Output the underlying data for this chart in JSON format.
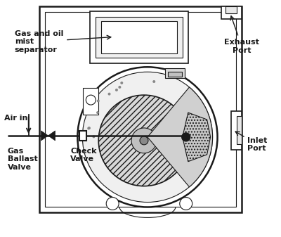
{
  "background_color": "#ffffff",
  "line_color": "#1a1a1a",
  "labels": {
    "gas_oil": "Gas and oil\nmist\nseparator",
    "exhaust": "Exhaust\nPort",
    "air_in": "Air in",
    "inlet": "Inlet\nPort",
    "gas_ballast": "Gas\nBallast\nValve",
    "check": "Check\nValve"
  },
  "figsize": [
    4.0,
    3.37
  ],
  "dpi": 100
}
